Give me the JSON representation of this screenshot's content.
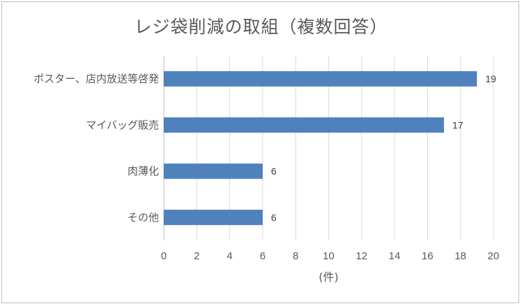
{
  "chart_data": {
    "type": "bar",
    "orientation": "horizontal",
    "title": "レジ袋削減の取組（複数回答）",
    "categories": [
      "ポスター、店内放送等啓発",
      "マイバッグ販売",
      "肉薄化",
      "その他"
    ],
    "values": [
      19,
      17,
      6,
      6
    ],
    "xlabel": "(件)",
    "ylabel": "",
    "xlim": [
      0,
      20
    ],
    "xticks": [
      0,
      2,
      4,
      6,
      8,
      10,
      12,
      14,
      16,
      18,
      20
    ],
    "grid": true,
    "legend": "none",
    "bar_color": "#4f81bd",
    "grid_color": "#d9d9d9"
  }
}
